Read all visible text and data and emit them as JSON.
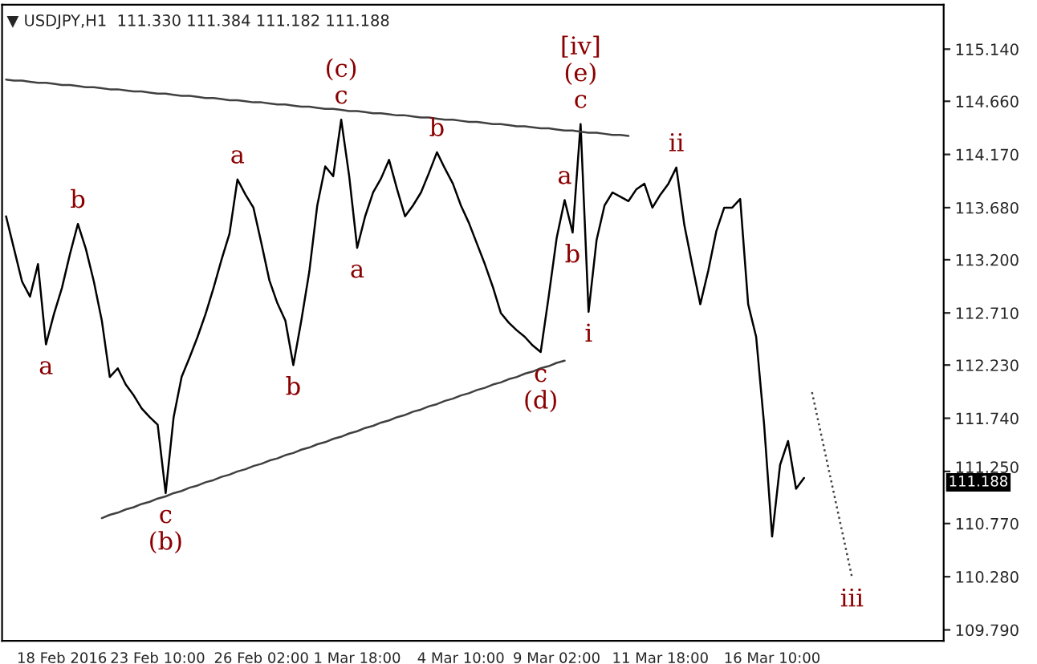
{
  "chart_data": {
    "type": "line",
    "title": "▼ USDJPY,H1  111.330 111.384 111.182 111.188",
    "categories": [
      null,
      null,
      null,
      null,
      null,
      null,
      null,
      "18 Feb 2016",
      null,
      null,
      null,
      null,
      null,
      null,
      null,
      null,
      null,
      null,
      null,
      "23 Feb 10:00",
      null,
      null,
      null,
      null,
      null,
      null,
      null,
      null,
      null,
      null,
      null,
      null,
      "26 Feb 02:00",
      null,
      null,
      null,
      null,
      null,
      null,
      null,
      null,
      null,
      null,
      null,
      "1 Mar 18:00",
      null,
      null,
      null,
      null,
      null,
      null,
      null,
      null,
      null,
      null,
      null,
      null,
      "4 Mar 10:00",
      null,
      null,
      null,
      null,
      null,
      null,
      null,
      null,
      null,
      null,
      null,
      "9 Mar 02:00",
      null,
      null,
      null,
      null,
      null,
      null,
      null,
      null,
      null,
      null,
      null,
      null,
      "11 Mar 18:00",
      null,
      null,
      null,
      null,
      null,
      null,
      null,
      null,
      null,
      null,
      null,
      null,
      null,
      "16 Mar 10:00",
      null,
      null,
      null,
      null,
      null,
      null,
      null,
      null,
      null,
      null,
      null,
      null,
      null,
      null,
      null,
      null,
      null,
      null,
      null,
      null,
      null
    ],
    "ylim": [
      109.69,
      115.55
    ],
    "yticks": [
      {
        "value": 115.14,
        "label": "115.140"
      },
      {
        "value": 114.66,
        "label": "114.660"
      },
      {
        "value": 114.17,
        "label": "114.170"
      },
      {
        "value": 113.68,
        "label": "113.680"
      },
      {
        "value": 113.2,
        "label": "113.200"
      },
      {
        "value": 112.71,
        "label": "112.710"
      },
      {
        "value": 112.23,
        "label": "112.230"
      },
      {
        "value": 111.74,
        "label": "111.740"
      },
      {
        "value": 111.25,
        "label": "111.250"
      },
      {
        "value": 110.77,
        "label": "110.770"
      },
      {
        "value": 110.28,
        "label": "110.280"
      },
      {
        "value": 109.79,
        "label": "109.790"
      }
    ],
    "grid": false,
    "series": [
      {
        "color": "#000000",
        "values": [
          113.6,
          113.3,
          113.0,
          112.86,
          113.16,
          112.42,
          112.7,
          112.94,
          113.25,
          113.53,
          113.3,
          113.0,
          112.64,
          112.12,
          112.2,
          112.05,
          111.95,
          111.83,
          111.75,
          111.68,
          111.05,
          111.75,
          112.12,
          112.3,
          112.49,
          112.7,
          112.94,
          113.2,
          113.44,
          113.94,
          113.8,
          113.68,
          113.35,
          113.01,
          112.8,
          112.64,
          112.23,
          112.64,
          113.09,
          113.7,
          114.06,
          113.97,
          114.49,
          113.97,
          113.31,
          113.6,
          113.82,
          113.95,
          114.12,
          113.85,
          113.6,
          113.7,
          113.82,
          114.0,
          114.19,
          114.04,
          113.9,
          113.7,
          113.54,
          113.35,
          113.16,
          112.95,
          112.71,
          112.62,
          112.55,
          112.49,
          112.41,
          112.35,
          112.86,
          113.4,
          113.75,
          113.45,
          114.45,
          112.72,
          113.38,
          113.7,
          113.82,
          113.78,
          113.74,
          113.85,
          113.9,
          113.68,
          113.8,
          113.9,
          114.05,
          113.52,
          113.15,
          112.79,
          113.1,
          113.46,
          113.68,
          113.68,
          113.76,
          112.79,
          112.49,
          111.68,
          110.65,
          111.31,
          111.53,
          111.09,
          111.19,
          null,
          null,
          null,
          null,
          null,
          null,
          null,
          null,
          null,
          null,
          null,
          null,
          null,
          null,
          null,
          null,
          null
        ]
      },
      {
        "color": "#404040",
        "values": [
          114.86,
          114.85,
          114.85,
          114.84,
          114.83,
          114.83,
          114.82,
          114.81,
          114.81,
          114.8,
          114.79,
          114.79,
          114.78,
          114.77,
          114.77,
          114.76,
          114.75,
          114.75,
          114.74,
          114.73,
          114.73,
          114.72,
          114.71,
          114.71,
          114.7,
          114.69,
          114.69,
          114.68,
          114.67,
          114.67,
          114.66,
          114.65,
          114.65,
          114.64,
          114.63,
          114.63,
          114.62,
          114.61,
          114.61,
          114.6,
          114.59,
          114.59,
          114.58,
          114.57,
          114.57,
          114.56,
          114.55,
          114.55,
          114.54,
          114.53,
          114.53,
          114.52,
          114.51,
          114.51,
          114.5,
          114.49,
          114.49,
          114.48,
          114.47,
          114.47,
          114.46,
          114.45,
          114.45,
          114.44,
          114.43,
          114.43,
          114.42,
          114.41,
          114.41,
          114.4,
          114.39,
          114.39,
          114.38,
          114.37,
          114.37,
          114.36,
          114.35,
          114.35,
          114.34,
          null,
          null,
          null,
          null,
          null,
          null,
          null,
          null,
          null,
          null,
          null,
          null,
          null,
          null,
          null,
          null,
          null,
          null,
          null,
          null,
          null,
          null,
          null,
          null,
          null,
          null,
          null,
          null,
          null,
          null,
          null,
          null,
          null,
          null,
          null,
          null,
          null,
          null,
          null
        ]
      },
      {
        "color": "#404040",
        "values": [
          null,
          null,
          null,
          null,
          null,
          null,
          null,
          null,
          null,
          null,
          null,
          null,
          110.82,
          110.85,
          110.87,
          110.9,
          110.92,
          110.95,
          110.97,
          111.0,
          111.02,
          111.05,
          111.07,
          111.1,
          111.12,
          111.15,
          111.17,
          111.2,
          111.22,
          111.25,
          111.27,
          111.3,
          111.32,
          111.35,
          111.37,
          111.4,
          111.42,
          111.45,
          111.47,
          111.5,
          111.52,
          111.55,
          111.57,
          111.6,
          111.62,
          111.65,
          111.67,
          111.7,
          111.72,
          111.75,
          111.77,
          111.8,
          111.82,
          111.85,
          111.87,
          111.9,
          111.92,
          111.95,
          111.97,
          112.0,
          112.02,
          112.05,
          112.07,
          112.1,
          112.12,
          112.15,
          112.17,
          112.2,
          112.22,
          112.25,
          112.27,
          null,
          null,
          null,
          null,
          null,
          null,
          null,
          null,
          null,
          null,
          null,
          null,
          null,
          null,
          null,
          null,
          null,
          null,
          null,
          null,
          null,
          null,
          null,
          null,
          null,
          null,
          null,
          null,
          null,
          null,
          null,
          null,
          null,
          null,
          null,
          null,
          null,
          null,
          null,
          null,
          null,
          null,
          null,
          null,
          null,
          null,
          null
        ]
      },
      {
        "color": "#404040",
        "line_style": "dotted",
        "values": [
          null,
          null,
          null,
          null,
          null,
          null,
          null,
          null,
          null,
          null,
          null,
          null,
          null,
          null,
          null,
          null,
          null,
          null,
          null,
          null,
          null,
          null,
          null,
          null,
          null,
          null,
          null,
          null,
          null,
          null,
          null,
          null,
          null,
          null,
          null,
          null,
          null,
          null,
          null,
          null,
          null,
          null,
          null,
          null,
          null,
          null,
          null,
          null,
          null,
          null,
          null,
          null,
          null,
          null,
          null,
          null,
          null,
          null,
          null,
          null,
          null,
          null,
          null,
          null,
          null,
          null,
          null,
          null,
          null,
          null,
          null,
          null,
          null,
          null,
          null,
          null,
          null,
          null,
          null,
          null,
          null,
          null,
          null,
          null,
          null,
          null,
          null,
          null,
          null,
          null,
          null,
          null,
          null,
          null,
          null,
          null,
          null,
          null,
          null,
          null,
          null,
          111.98,
          111.64,
          111.3,
          110.96,
          110.62,
          110.28,
          null,
          null,
          null,
          null,
          null,
          null,
          null,
          null,
          null,
          null,
          null
        ]
      }
    ],
    "annotations": [
      "111.188",
      {
        "text": "a",
        "y": 112.42
      },
      {
        "text": "b",
        "y": 113.53
      },
      {
        "text": "c",
        "y": 111.05
      },
      {
        "text": "(b)",
        "y": 111.05
      },
      {
        "text": "a",
        "y": 113.94
      },
      {
        "text": "b",
        "y": 112.23
      },
      {
        "text": "c",
        "y": 114.49
      },
      {
        "text": "(c)",
        "y": 114.49
      },
      {
        "text": "a",
        "y": 113.31
      },
      {
        "text": "b",
        "y": 114.19
      },
      {
        "text": "c",
        "y": 112.35
      },
      {
        "text": "(d)",
        "y": 112.35
      },
      {
        "text": "a",
        "y": 113.75
      },
      {
        "text": "b",
        "y": 113.45
      },
      {
        "text": "c",
        "y": 114.45
      },
      {
        "text": "(e)",
        "y": 114.45
      },
      {
        "text": "[iv]",
        "y": 114.45
      },
      {
        "text": "i",
        "y": 112.72
      },
      {
        "text": "ii",
        "y": 114.05
      },
      {
        "text": "iii",
        "y": 110.28
      }
    ]
  }
}
